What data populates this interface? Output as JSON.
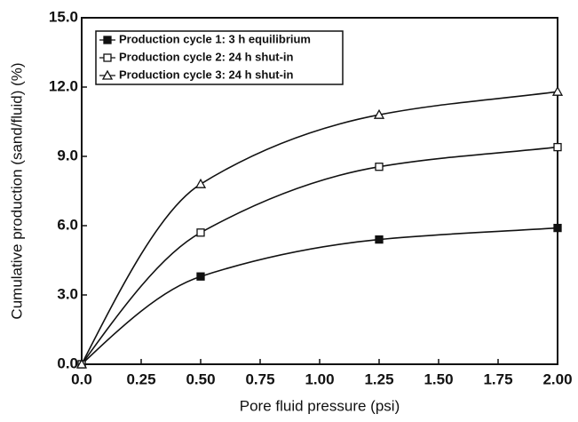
{
  "chart_data": {
    "type": "line",
    "x_label": "Pore fluid pressure (psi)",
    "y_label": "Cumulative production (sand/fluid) (%)",
    "xlim": [
      0,
      2
    ],
    "ylim": [
      0,
      15
    ],
    "xticks": [
      {
        "value": 0,
        "label": "0.0"
      },
      0.25,
      {
        "value": 0.5,
        "label": "0.50"
      },
      0.75,
      {
        "value": 1,
        "label": "1.00"
      },
      1.25,
      {
        "value": 1.5,
        "label": "1.50"
      },
      1.75,
      {
        "value": 2,
        "label": "2.00"
      }
    ],
    "yticks": [
      {
        "value": 0,
        "label": "0.0"
      },
      {
        "value": 3,
        "label": "3.0"
      },
      {
        "value": 6,
        "label": "6.0"
      },
      {
        "value": 9,
        "label": "9.0"
      },
      {
        "value": 12,
        "label": "12.0"
      },
      {
        "value": 15,
        "label": "15.0"
      }
    ],
    "legend": "upper left",
    "series": [
      {
        "name": "Production cycle 1: 3 h equilibrium",
        "color": "#111111",
        "marker": "filled-square",
        "x": [
          0,
          0.5,
          1.25,
          2
        ],
        "values": [
          0,
          3.8,
          5.4,
          5.9
        ]
      },
      {
        "name": "Production cycle 2: 24 h shut-in",
        "color": "#111111",
        "marker": "open-square",
        "x": [
          0,
          0.5,
          1.25,
          2
        ],
        "values": [
          0,
          5.7,
          8.55,
          9.4
        ]
      },
      {
        "name": "Production cycle 3: 24 h shut-in",
        "color": "#111111",
        "marker": "open-triangle",
        "x": [
          0,
          0.5,
          1.25,
          2
        ],
        "values": [
          0,
          7.8,
          10.8,
          11.8
        ]
      }
    ]
  }
}
